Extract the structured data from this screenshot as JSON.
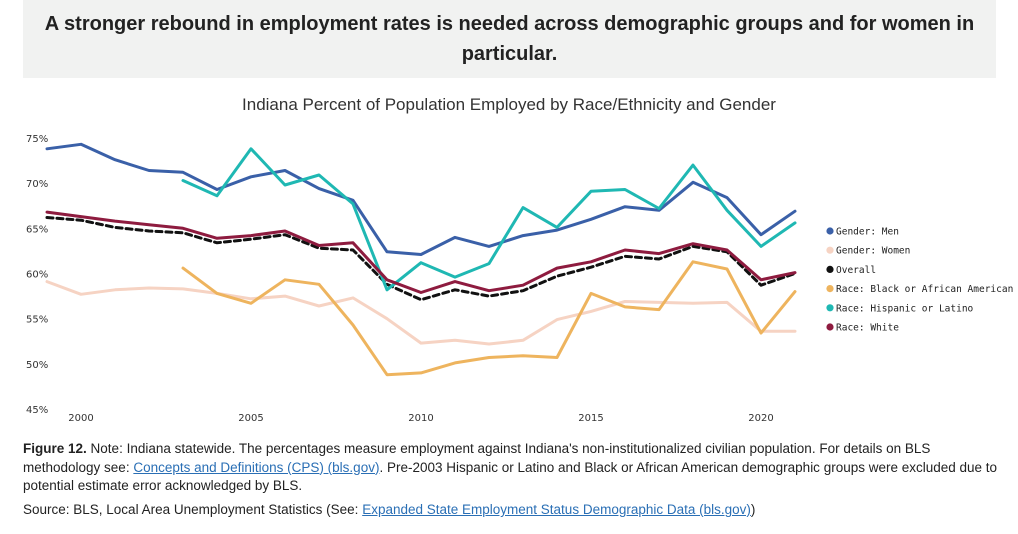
{
  "header": {
    "headline": "A stronger rebound in employment rates is needed across demographic groups and for women in particular."
  },
  "chart_data": {
    "type": "line",
    "title": "Indiana Percent of Population Employed by Race/Ethnicity and Gender",
    "xlabel": "",
    "ylabel": "",
    "ylim": [
      45,
      75
    ],
    "xlim": [
      1999.5,
      2021.5
    ],
    "yticks": [
      "45%",
      "50%",
      "55%",
      "60%",
      "65%",
      "70%",
      "75%"
    ],
    "xticks": [
      "2000",
      "2005",
      "2010",
      "2015",
      "2020"
    ],
    "grid": false,
    "legend_position": "right",
    "series": [
      {
        "name": "Gender: Men",
        "color": "#3a60a8",
        "dash": false,
        "x": [
          1999,
          2000,
          2001,
          2002,
          2003,
          2004,
          2005,
          2006,
          2007,
          2008,
          2009,
          2010,
          2011,
          2012,
          2013,
          2014,
          2015,
          2016,
          2017,
          2018,
          2019,
          2020,
          2021
        ],
        "values": [
          73.8,
          74.3,
          72.6,
          71.4,
          71.2,
          69.3,
          70.7,
          71.4,
          69.4,
          68.1,
          62.4,
          62.1,
          64.0,
          63.0,
          64.2,
          64.8,
          66.0,
          67.4,
          67.0,
          70.1,
          68.4,
          64.3,
          66.9
        ]
      },
      {
        "name": "Gender: Women",
        "color": "#f6d3c3",
        "dash": false,
        "x": [
          1999,
          2000,
          2001,
          2002,
          2003,
          2004,
          2005,
          2006,
          2007,
          2008,
          2009,
          2010,
          2011,
          2012,
          2013,
          2014,
          2015,
          2016,
          2017,
          2018,
          2019,
          2020,
          2021
        ],
        "values": [
          59.1,
          57.7,
          58.2,
          58.4,
          58.3,
          57.8,
          57.2,
          57.5,
          56.4,
          57.3,
          55.0,
          52.3,
          52.6,
          52.2,
          52.6,
          54.9,
          55.8,
          56.9,
          56.8,
          56.7,
          56.8,
          53.6,
          53.6
        ]
      },
      {
        "name": "Overall",
        "color": "#111111",
        "dash": true,
        "x": [
          1999,
          2000,
          2001,
          2002,
          2003,
          2004,
          2005,
          2006,
          2007,
          2008,
          2009,
          2010,
          2011,
          2012,
          2013,
          2014,
          2015,
          2016,
          2017,
          2018,
          2019,
          2020,
          2021
        ],
        "values": [
          66.2,
          65.9,
          65.1,
          64.7,
          64.5,
          63.4,
          63.8,
          64.3,
          62.8,
          62.6,
          58.8,
          57.1,
          58.2,
          57.5,
          58.1,
          59.7,
          60.7,
          61.9,
          61.6,
          63.0,
          62.4,
          58.7,
          60.0
        ]
      },
      {
        "name": "Race:  Black or African American",
        "color": "#eeb45e",
        "dash": false,
        "x": [
          2003,
          2004,
          2005,
          2006,
          2007,
          2008,
          2009,
          2010,
          2011,
          2012,
          2013,
          2014,
          2015,
          2016,
          2017,
          2018,
          2019,
          2020,
          2021
        ],
        "values": [
          60.6,
          57.8,
          56.7,
          59.3,
          58.8,
          54.3,
          48.8,
          49.0,
          50.1,
          50.7,
          50.9,
          50.7,
          57.8,
          56.3,
          56.0,
          61.3,
          60.5,
          53.4,
          58.0
        ]
      },
      {
        "name": "Race:  Hispanic or Latino",
        "color": "#1fb8b3",
        "dash": false,
        "x": [
          2003,
          2004,
          2005,
          2006,
          2007,
          2008,
          2009,
          2010,
          2011,
          2012,
          2013,
          2014,
          2015,
          2016,
          2017,
          2018,
          2019,
          2020,
          2021
        ],
        "values": [
          70.3,
          68.6,
          73.8,
          69.8,
          70.9,
          67.7,
          58.2,
          61.2,
          59.6,
          61.1,
          67.3,
          65.1,
          69.1,
          69.3,
          67.2,
          72.0,
          67.0,
          63.0,
          65.6
        ]
      },
      {
        "name": "Race:  White",
        "color": "#8e1b3f",
        "dash": false,
        "x": [
          1999,
          2000,
          2001,
          2002,
          2003,
          2004,
          2005,
          2006,
          2007,
          2008,
          2009,
          2010,
          2011,
          2012,
          2013,
          2014,
          2015,
          2016,
          2017,
          2018,
          2019,
          2020,
          2021
        ],
        "values": [
          66.8,
          66.3,
          65.8,
          65.4,
          65.0,
          63.9,
          64.2,
          64.7,
          63.1,
          63.4,
          59.3,
          57.9,
          59.1,
          58.1,
          58.7,
          60.6,
          61.3,
          62.6,
          62.2,
          63.3,
          62.6,
          59.3,
          60.1
        ]
      }
    ]
  },
  "caption": {
    "figure_label": "Figure 12.",
    "text_before_link": "Note: Indiana statewide. The percentages measure employment against Indiana's non-institutionalized civilian population. For details on BLS methodology see:",
    "link1": "Concepts and Definitions (CPS) (bls.gov)",
    "text_after_link": ". Pre-2003 Hispanic or Latino and Black or African American demographic groups were excluded due to potential estimate error acknowledged by BLS."
  },
  "source": {
    "text_before_link": "Source: BLS, Local Area Unemployment Statistics (See:",
    "link": "Expanded State Employment Status Demographic Data (bls.gov)",
    "text_after_link": ")"
  }
}
